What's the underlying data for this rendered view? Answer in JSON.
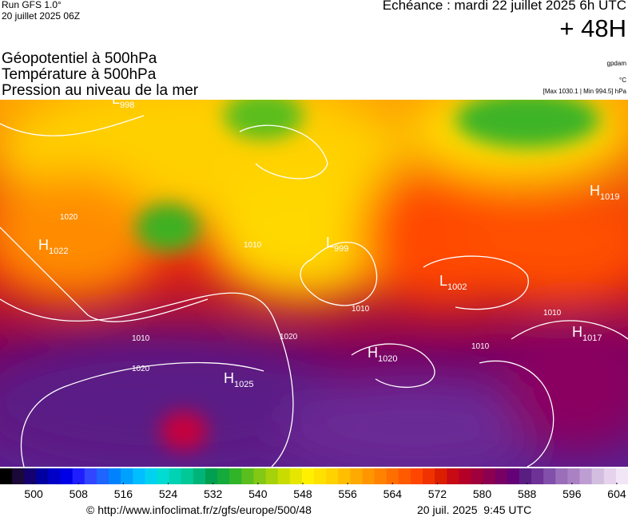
{
  "header": {
    "run": "Run GFS 1.0°",
    "run_date": "20 juillet 2025 06Z",
    "valid": "Echéance : mardi 22 juillet 2025 6h UTC",
    "lead": "+ 48H"
  },
  "fields": [
    "Géopotentiel à 500hPa",
    "Température à 500hPa",
    "Pression au niveau de la mer"
  ],
  "units": {
    "geopotential": "gpdam",
    "temperature": "°C",
    "pressure": "[Max 1030.1 | Min 994.5] hPa"
  },
  "centers": [
    {
      "type": "H",
      "value": "1022"
    },
    {
      "type": "H",
      "value": "1025"
    },
    {
      "type": "H",
      "value": "1020"
    },
    {
      "type": "H",
      "value": "1019"
    },
    {
      "type": "H",
      "value": "1017"
    },
    {
      "type": "L",
      "value": "999"
    },
    {
      "type": "L",
      "value": "1002"
    },
    {
      "type": "L",
      "value": "998"
    }
  ],
  "isobar_labels": [
    "1010",
    "1020",
    "1020",
    "1010",
    "1010",
    "1020",
    "1010",
    "1010"
  ],
  "colorbar": {
    "lim": [
      494,
      606
    ],
    "ticks": [
      500,
      508,
      516,
      524,
      532,
      540,
      548,
      556,
      564,
      572,
      580,
      588,
      596,
      604
    ],
    "colors": [
      "#000000",
      "#1a0838",
      "#14006e",
      "#0000a0",
      "#0000c8",
      "#0000e6",
      "#1e1eff",
      "#3246ff",
      "#1e64ff",
      "#0082ff",
      "#00a0ff",
      "#00beff",
      "#00d2f0",
      "#00dcd2",
      "#00d2b4",
      "#00c896",
      "#00b478",
      "#00a050",
      "#14aa3c",
      "#32b428",
      "#5abe1e",
      "#82c814",
      "#a5d20a",
      "#c8dc00",
      "#e6e600",
      "#fff000",
      "#ffe100",
      "#ffd200",
      "#ffbe00",
      "#ffaa00",
      "#ff9600",
      "#ff8200",
      "#ff6e00",
      "#ff5a00",
      "#ff4600",
      "#f03200",
      "#dc1e00",
      "#c80a14",
      "#b40028",
      "#a0003c",
      "#8c0050",
      "#780064",
      "#640078",
      "#5a1e82",
      "#6e3296",
      "#8250aa",
      "#9a6eb9",
      "#aa82c3",
      "#be9ed2",
      "#d2bedf",
      "#e6d2ec",
      "#f0e6f5"
    ]
  },
  "footer": {
    "url": "© http://www.infoclimat.fr/z/gfs/europe/500/48",
    "stamp": "20 juil. 2025  9:45 UTC"
  }
}
